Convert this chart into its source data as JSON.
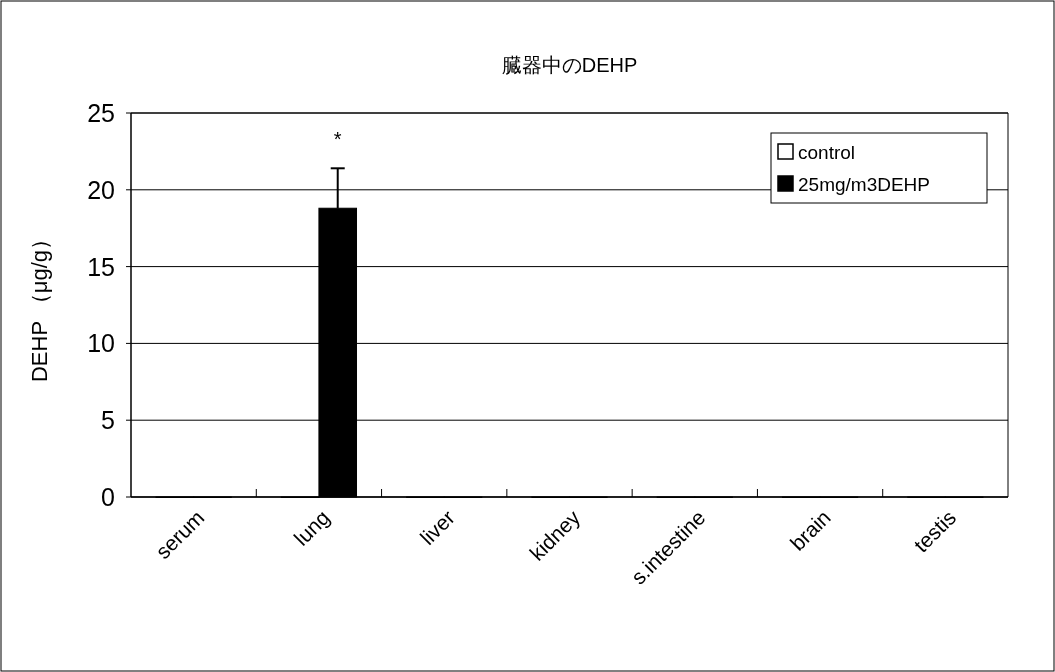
{
  "chart_data": {
    "type": "bar",
    "title": "臓器中のDEHP",
    "ylabel": "DEHP （μg/g）",
    "categories": [
      "serum",
      "lung",
      "liver",
      "kidney",
      "s.intestine",
      "brain",
      "testis"
    ],
    "series": [
      {
        "name": "control",
        "color": "#ffffff",
        "values": [
          0,
          0,
          0,
          0,
          0,
          0,
          0
        ]
      },
      {
        "name": "25mg/m3DEHP",
        "color": "#000000",
        "values": [
          0,
          18.8,
          0,
          0,
          0,
          0,
          0
        ],
        "errors": [
          null,
          [
            18.8,
            21.4
          ],
          null,
          null,
          null,
          null,
          null
        ]
      }
    ],
    "ylim": [
      0,
      25
    ],
    "yticks": [
      0,
      5,
      10,
      15,
      20,
      25
    ],
    "grid": "y",
    "legend": "top right",
    "annotations": [
      "*"
    ]
  }
}
